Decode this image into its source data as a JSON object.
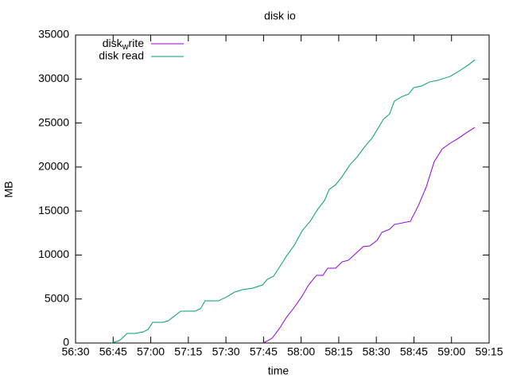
{
  "chart_data": {
    "type": "line",
    "title": "disk io",
    "x_label": "time",
    "y_label": "MB",
    "xlim": [
      3390,
      3555
    ],
    "xticks": [
      {
        "value": 3390,
        "label": "56:30"
      },
      {
        "value": 3405,
        "label": "56:45"
      },
      {
        "value": 3420,
        "label": "57:00"
      },
      {
        "value": 3435,
        "label": "57:15"
      },
      {
        "value": 3450,
        "label": "57:30"
      },
      {
        "value": 3465,
        "label": "57:45"
      },
      {
        "value": 3480,
        "label": "58:00"
      },
      {
        "value": 3495,
        "label": "58:15"
      },
      {
        "value": 3510,
        "label": "58:30"
      },
      {
        "value": 3525,
        "label": "58:45"
      },
      {
        "value": 3540,
        "label": "59:00"
      },
      {
        "value": 3555,
        "label": "59:15"
      }
    ],
    "ylim": [
      0,
      35000
    ],
    "yticks": [
      0,
      5000,
      10000,
      15000,
      20000,
      25000,
      30000,
      35000
    ],
    "legend": "top-left",
    "series": [
      {
        "name": "disk_write",
        "color": "#9400d3",
        "x": [
          3464.9,
          3468.4,
          3471.5,
          3474.1,
          3477.3,
          3480.4,
          3483,
          3486.1,
          3488.7,
          3490.6,
          3493.8,
          3496.3,
          3498.8,
          3502,
          3504.7,
          3507.4,
          3510.3,
          3512.2,
          3515.3,
          3517.2,
          3520.4,
          3523.6,
          3526.8,
          3529.9,
          3533.1,
          3536.3,
          3539.4,
          3542.6,
          3545.8,
          3549.3
        ],
        "values": [
          0,
          540,
          1720,
          2890,
          4070,
          5330,
          6600,
          7690,
          7690,
          8500,
          8500,
          9220,
          9400,
          10220,
          10940,
          11030,
          11660,
          12570,
          12930,
          13470,
          13650,
          13830,
          15640,
          17720,
          20610,
          22060,
          22690,
          23240,
          23870,
          24500
        ]
      },
      {
        "name": "disk read",
        "color": "#009e73",
        "x": [
          3404.3,
          3407.5,
          3410.6,
          3413.8,
          3417,
          3418.9,
          3420.8,
          3424.9,
          3427,
          3429,
          3432,
          3437.6,
          3439.8,
          3441.7,
          3447,
          3450.3,
          3453.5,
          3456.6,
          3460.8,
          3464.6,
          3466.5,
          3469,
          3471.5,
          3474.1,
          3477.3,
          3480.4,
          3483.6,
          3486.8,
          3489.3,
          3491.2,
          3493.8,
          3496.3,
          3499.5,
          3502.6,
          3505.2,
          3508.4,
          3510.9,
          3512.8,
          3515.3,
          3517.2,
          3519.8,
          3522.9,
          3524.9,
          3528,
          3531.2,
          3534.4,
          3539.4,
          3542.6,
          3547,
          3549.3
        ],
        "values": [
          0,
          270,
          1085,
          1085,
          1265,
          1540,
          2350,
          2350,
          2530,
          2980,
          3620,
          3620,
          3890,
          4790,
          4790,
          5240,
          5790,
          6060,
          6240,
          6600,
          7230,
          7600,
          8680,
          9850,
          11120,
          12750,
          13830,
          15280,
          16180,
          17450,
          17990,
          18900,
          20250,
          21240,
          22240,
          23330,
          24500,
          25410,
          26040,
          27490,
          27940,
          28300,
          29020,
          29200,
          29660,
          29840,
          30290,
          30830,
          31650,
          32190
        ]
      }
    ]
  }
}
